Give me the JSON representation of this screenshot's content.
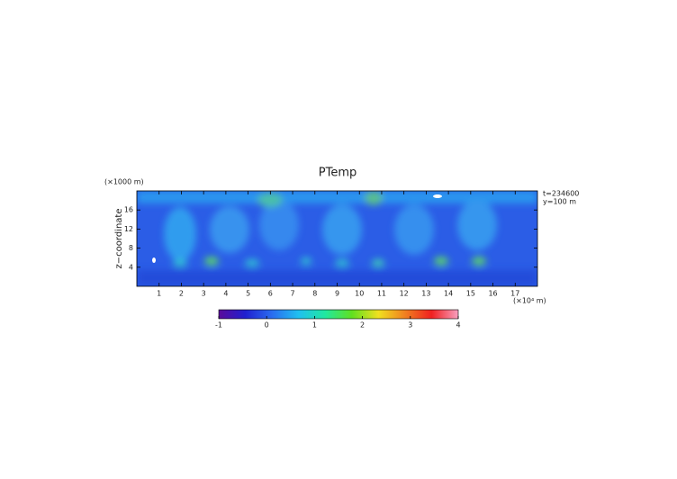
{
  "chart_data": {
    "type": "contour",
    "title": "PTemp",
    "x_unit": "(×10⁴ m)",
    "y_unit": "(×1000 m)",
    "y_label": "z−coordinate",
    "annotations": [
      "t=234600",
      "y=100 m"
    ],
    "xlim": [
      0,
      18
    ],
    "xticks": [
      1,
      2,
      3,
      4,
      5,
      6,
      7,
      8,
      9,
      10,
      11,
      12,
      13,
      14,
      15,
      16,
      17
    ],
    "ylim": [
      0,
      20
    ],
    "yticks": [
      4,
      8,
      12,
      16
    ],
    "colorbar": {
      "lim": [
        -1,
        4
      ],
      "ticks": [
        -1,
        0,
        1,
        2,
        3,
        4
      ],
      "colors": [
        "#5a0a9a",
        "#2020d0",
        "#2a6cf0",
        "#20c0f0",
        "#20e8a0",
        "#60e020",
        "#f0e020",
        "#f08020",
        "#f02020",
        "#f8a0c0"
      ]
    }
  }
}
